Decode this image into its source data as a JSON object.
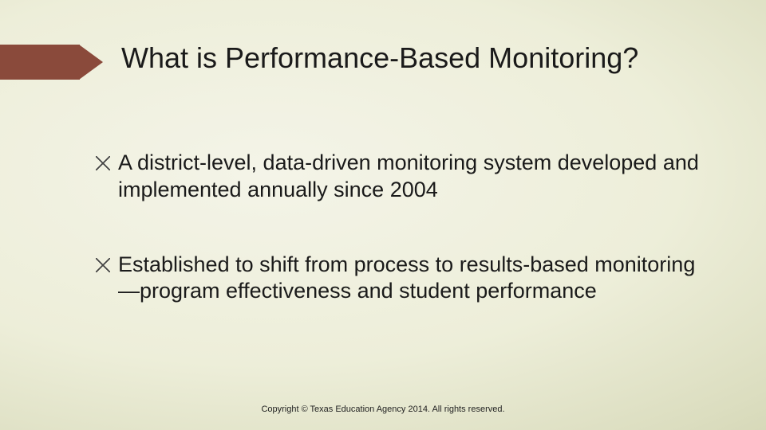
{
  "title": "What is Performance-Based Monitoring?",
  "bullets": [
    "A district-level, data-driven monitoring system developed  and implemented annually since 2004",
    "Established to shift from process to results-based monitoring—program effectiveness and student performance"
  ],
  "footer": "Copyright © Texas Education Agency 2014. All rights reserved.",
  "style": {
    "arrow_color": "#8a4a3b",
    "title_fontsize": 36,
    "body_fontsize": 27,
    "footer_fontsize": 11,
    "text_color": "#1a1a1a",
    "background_gradient": {
      "center": "#f4f4e8",
      "mid": "#edeed9",
      "outer": "#dbddbf",
      "edge": "#c9cba6"
    }
  }
}
